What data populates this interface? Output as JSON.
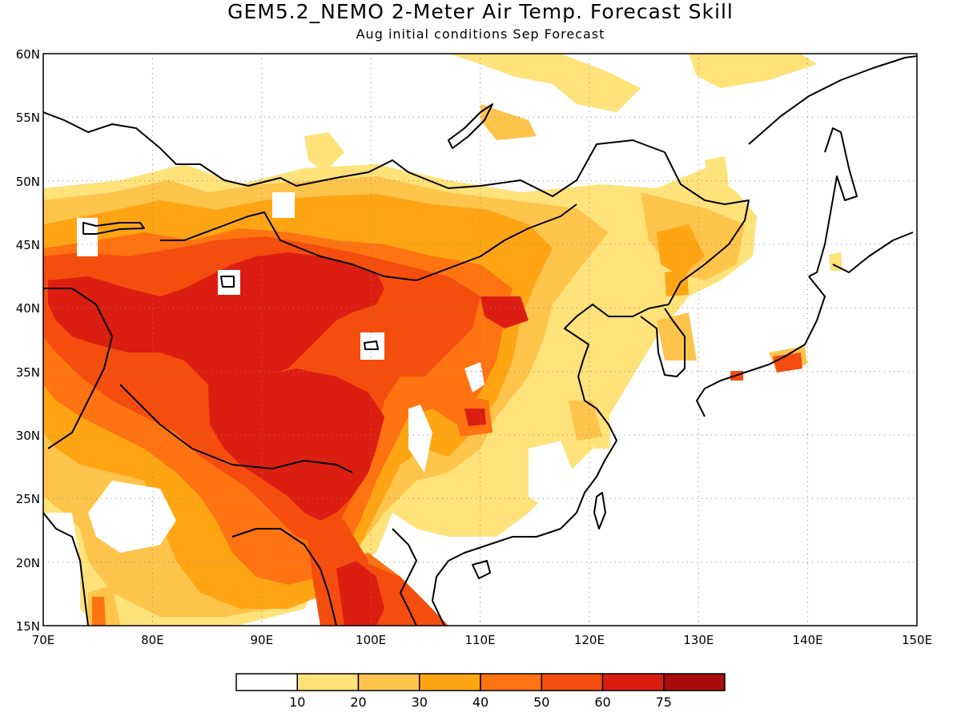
{
  "header": {
    "title": "GEM5.2_NEMO 2-Meter Air Temp. Forecast Skill",
    "subtitle": "Aug initial conditions  Sep Forecast"
  },
  "map": {
    "lon_range": [
      70,
      150
    ],
    "lat_range": [
      15,
      60
    ],
    "lon_ticks": [
      "70E",
      "80E",
      "90E",
      "100E",
      "110E",
      "120E",
      "130E",
      "140E",
      "150E"
    ],
    "lat_ticks": [
      "15N",
      "20N",
      "25N",
      "30N",
      "35N",
      "40N",
      "45N",
      "50N",
      "55N",
      "60N"
    ],
    "gridlines": "dotted"
  },
  "colorbar": {
    "colors": [
      "#ffffff",
      "#ffe27a",
      "#ffc44c",
      "#ffa514",
      "#ff7310",
      "#f44d0e",
      "#dc1e12",
      "#a80d0d"
    ],
    "labels": [
      "10",
      "20",
      "30",
      "40",
      "50",
      "60",
      "75"
    ]
  }
}
